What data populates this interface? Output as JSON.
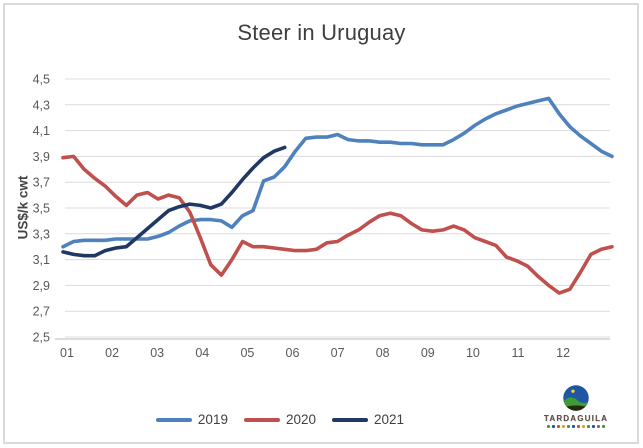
{
  "chart_data": {
    "type": "line",
    "title": "Steer in Uruguay",
    "ylabel": "US$/k cwt",
    "xlabel": "",
    "ylim": [
      2.5,
      4.5
    ],
    "ytick_step": 0.2,
    "ytick_labels_top_to_bottom": [
      "4,5",
      "4,3",
      "4,1",
      "3,9",
      "3,7",
      "3,5",
      "3,3",
      "3,1",
      "2,9",
      "2,7",
      "2,5"
    ],
    "xtick_labels": [
      "01",
      "02",
      "03",
      "04",
      "05",
      "06",
      "07",
      "08",
      "09",
      "10",
      "11",
      "12"
    ],
    "x_resolution": "weekly",
    "grid": true,
    "legend_position": "bottom",
    "colors": {
      "gridline": "#dcdcdc",
      "axis_line": "#c6c6c6",
      "tick_text": "#595959",
      "title_text": "#3f3f3f"
    },
    "series": [
      {
        "name": "2019",
        "color": "#4F81BD",
        "values": [
          3.2,
          3.24,
          3.25,
          3.25,
          3.25,
          3.26,
          3.26,
          3.26,
          3.26,
          3.28,
          3.31,
          3.36,
          3.4,
          3.41,
          3.41,
          3.4,
          3.35,
          3.44,
          3.48,
          3.71,
          3.74,
          3.82,
          3.94,
          4.04,
          4.05,
          4.05,
          4.07,
          4.03,
          4.02,
          4.02,
          4.01,
          4.01,
          4.0,
          4.0,
          3.99,
          3.99,
          3.99,
          4.03,
          4.08,
          4.14,
          4.19,
          4.23,
          4.26,
          4.29,
          4.31,
          4.33,
          4.35,
          4.23,
          4.13,
          4.06,
          4.0,
          3.94,
          3.9
        ]
      },
      {
        "name": "2020",
        "color": "#C0504D",
        "values": [
          3.89,
          3.9,
          3.8,
          3.73,
          3.67,
          3.59,
          3.52,
          3.6,
          3.62,
          3.57,
          3.6,
          3.58,
          3.47,
          3.27,
          3.06,
          2.98,
          3.1,
          3.24,
          3.2,
          3.2,
          3.19,
          3.18,
          3.17,
          3.17,
          3.18,
          3.23,
          3.24,
          3.29,
          3.33,
          3.39,
          3.44,
          3.46,
          3.44,
          3.38,
          3.33,
          3.32,
          3.33,
          3.36,
          3.33,
          3.27,
          3.24,
          3.21,
          3.12,
          3.09,
          3.05,
          2.97,
          2.9,
          2.84,
          2.87,
          3.0,
          3.14,
          3.18,
          3.2
        ]
      },
      {
        "name": "2021",
        "color": "#1F3864",
        "values": [
          3.16,
          3.14,
          3.13,
          3.13,
          3.17,
          3.19,
          3.2,
          3.27,
          3.34,
          3.41,
          3.48,
          3.51,
          3.53,
          3.52,
          3.5,
          3.53,
          3.62,
          3.72,
          3.81,
          3.89,
          3.94,
          3.97
        ]
      }
    ]
  },
  "branding": {
    "logo_text": "TARDAGUILA"
  }
}
